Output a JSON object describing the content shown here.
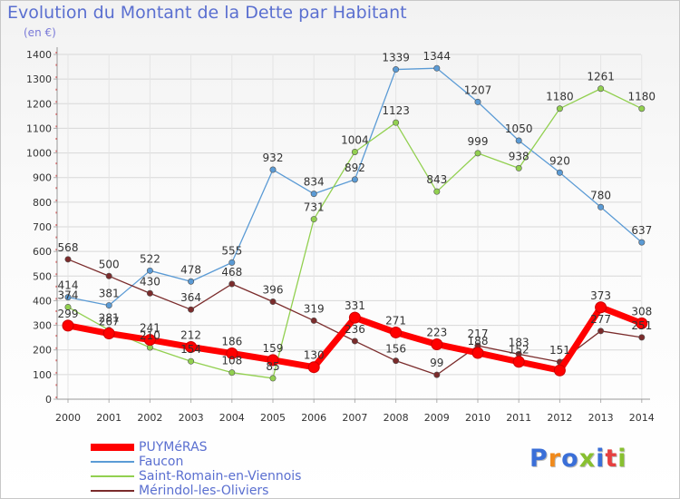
{
  "header": {
    "title": "Evolution du Montant de la Dette par Habitant",
    "subtitle": "(en €)"
  },
  "logo": {
    "text": "Proxiti",
    "colors": [
      "#3a6fd8",
      "#f08a1c",
      "#3a6fd8",
      "#88c030",
      "#3a6fd8",
      "#e64040",
      "#88c030"
    ]
  },
  "chart_data": {
    "type": "line",
    "x": [
      "2000",
      "2001",
      "2002",
      "2003",
      "2004",
      "2005",
      "2006",
      "2007",
      "2008",
      "2009",
      "2010",
      "2011",
      "2012",
      "2013",
      "2014"
    ],
    "ylim": [
      0,
      1400
    ],
    "yticks": [
      0,
      100,
      200,
      300,
      400,
      500,
      600,
      700,
      800,
      900,
      1000,
      1100,
      1200,
      1300,
      1400
    ],
    "grid": true,
    "legend_position": "bottom-left",
    "series": [
      {
        "name": "PUYMéRAS",
        "color": "#ff0000",
        "values": [
          299,
          267,
          241,
          212,
          186,
          159,
          130,
          331,
          271,
          223,
          188,
          152,
          117,
          373,
          308
        ],
        "labels": [
          "299",
          "267",
          "241",
          "212",
          "186",
          "159",
          "130",
          "331",
          "271",
          "223",
          "188",
          "152",
          "",
          "373",
          "308"
        ]
      },
      {
        "name": "Faucon",
        "color": "#5b9bd5",
        "values": [
          414,
          381,
          522,
          478,
          555,
          932,
          834,
          892,
          1339,
          1344,
          1207,
          1050,
          920,
          780,
          637
        ],
        "labels": [
          "414",
          "381",
          "522",
          "478",
          "555",
          "932",
          "834",
          "892",
          "1339",
          "1344",
          "1207",
          "1050",
          "920",
          "780",
          "637"
        ]
      },
      {
        "name": "Saint-Romain-en-Viennois",
        "color": "#92d050",
        "values": [
          374,
          281,
          210,
          154,
          108,
          85,
          731,
          1004,
          1123,
          843,
          999,
          938,
          1180,
          1261,
          1180
        ],
        "labels": [
          "374",
          "281",
          "210",
          "154",
          "108",
          "85",
          "731",
          "1004",
          "1123",
          "843",
          "999",
          "938",
          "1180",
          "1261",
          "1180"
        ]
      },
      {
        "name": "Mérindol-les-Oliviers",
        "color": "#7b2c2c",
        "values": [
          568,
          500,
          430,
          364,
          468,
          396,
          319,
          236,
          156,
          99,
          217,
          183,
          151,
          277,
          251
        ],
        "labels": [
          "568",
          "500",
          "430",
          "364",
          "468",
          "396",
          "319",
          "236",
          "156",
          "99",
          "217",
          "183",
          "151",
          "277",
          "251"
        ]
      }
    ]
  }
}
